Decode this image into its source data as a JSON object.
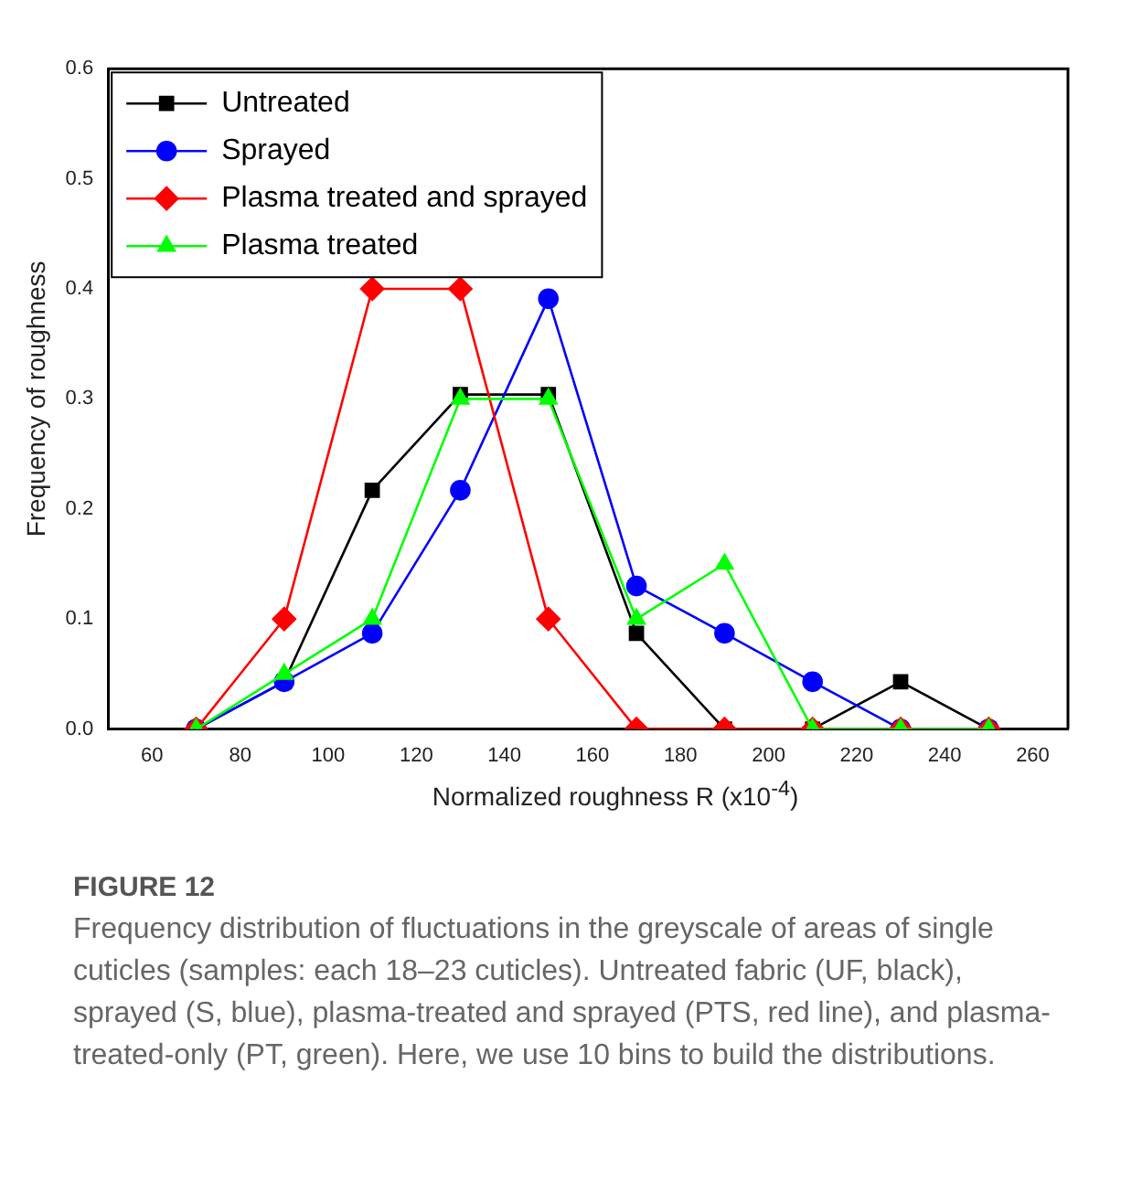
{
  "chart_data": {
    "type": "line",
    "xlabel": "Normalized roughness R (x10$^{-4}$)",
    "ylabel": "Frequency of roughness",
    "x": [
      70,
      90,
      110,
      130,
      150,
      170,
      190,
      210,
      230,
      250
    ],
    "series": [
      {
        "name": "Untreated",
        "color": "#000000",
        "marker": "square",
        "values": [
          0,
          0.043,
          0.217,
          0.304,
          0.304,
          0.087,
          0,
          0,
          0.043,
          0
        ]
      },
      {
        "name": "Sprayed",
        "color": "#0000ff",
        "marker": "circle",
        "values": [
          0,
          0.043,
          0.087,
          0.217,
          0.391,
          0.13,
          0.087,
          0.043,
          0,
          0
        ]
      },
      {
        "name": "Plasma treated and sprayed",
        "color": "#ff0000",
        "marker": "diamond",
        "values": [
          0,
          0.1,
          0.4,
          0.4,
          0.1,
          0,
          0,
          0,
          0,
          0
        ]
      },
      {
        "name": "Plasma treated",
        "color": "#00ff00",
        "marker": "triangle",
        "values": [
          0,
          0.05,
          0.1,
          0.3,
          0.3,
          0.1,
          0.15,
          0,
          0,
          0
        ]
      }
    ],
    "xlim": [
      50,
      268
    ],
    "xticks": [
      60,
      80,
      100,
      120,
      140,
      160,
      180,
      200,
      220,
      240,
      260
    ],
    "ylim": [
      0,
      0.6
    ],
    "yticks": [
      {
        "value": 0,
        "label": "0.0"
      },
      0.1,
      0.2,
      0.3,
      0.4,
      0.5,
      0.6
    ],
    "grid": false,
    "legend": "top left",
    "line_style": "solid",
    "annotations": [
      "FIGURE 12",
      "Frequency distribution of fluctuations in the greyscale of areas of single cuticles (samples: each 18–23 cuticles). Untreated fabric (UF, black), sprayed (S, blue), plasma-treated and sprayed (PTS, red line), and plasma-treated-only (PT, green). Here, we use 10 bins to build the distributions."
    ]
  }
}
